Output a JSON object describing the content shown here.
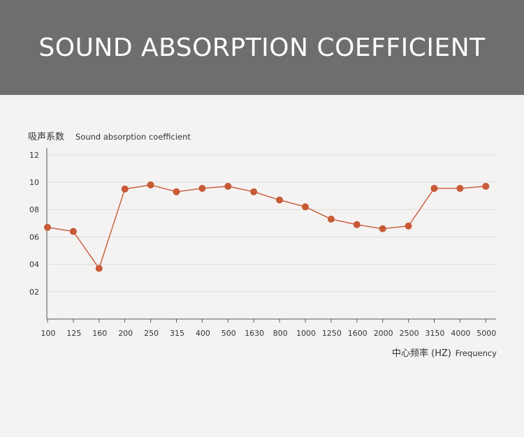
{
  "header": {
    "title": "SOUND ABSORPTION COEFFICIENT"
  },
  "chart_data": {
    "type": "line",
    "ylabel_cn": "吸声系数",
    "ylabel": "Sound absorption coefficient",
    "xlabel_cn": "中心频率 (HZ)",
    "xlabel": "Frequency",
    "categories": [
      "100",
      "125",
      "160",
      "200",
      "250",
      "315",
      "400",
      "500",
      "1630",
      "800",
      "1000",
      "1250",
      "1600",
      "2000",
      "2500",
      "3150",
      "4000",
      "5000"
    ],
    "y_ticks": [
      {
        "value": 2,
        "label": "02"
      },
      {
        "value": 4,
        "label": "04"
      },
      {
        "value": 6,
        "label": "06"
      },
      {
        "value": 8,
        "label": "08"
      },
      {
        "value": 10,
        "label": "10"
      },
      {
        "value": 12,
        "label": "12"
      }
    ],
    "ylim": [
      0,
      12.5
    ],
    "grid": true,
    "series": [
      {
        "values": [
          6.7,
          6.4,
          3.7,
          9.5,
          9.8,
          9.3,
          9.55,
          9.7,
          9.3,
          8.7,
          8.2,
          7.3,
          6.9,
          6.6,
          6.8,
          9.55,
          9.55,
          9.7
        ]
      }
    ],
    "colors": {
      "line": "#c85a36",
      "grid": "#dcdcdc",
      "axis": "#555555"
    }
  }
}
